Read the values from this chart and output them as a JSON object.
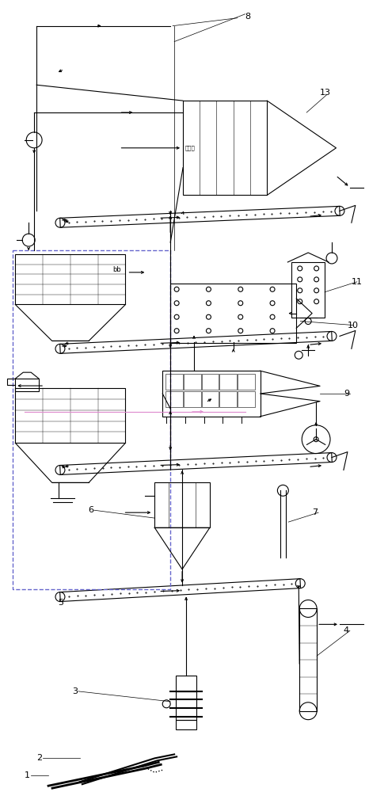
{
  "figsize": [
    4.9,
    10.0
  ],
  "dpi": 100,
  "bg": "#ffffff",
  "lc": "#000000",
  "pink": "#dd88cc",
  "blue_dash": "#6666cc",
  "green_dash": "#44aa44"
}
